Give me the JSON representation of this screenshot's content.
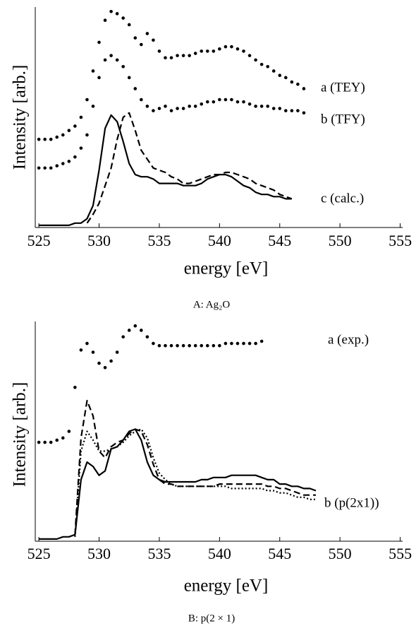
{
  "chart_data": [
    {
      "type": "line",
      "title": "A: Ag₂O",
      "xlabel": "energy [eV]",
      "ylabel": "Intensity [arb.]",
      "xlim": [
        524.7,
        555.2
      ],
      "xticks": [
        525,
        530,
        535,
        540,
        545,
        550,
        555
      ],
      "ylim": [
        0,
        100
      ],
      "color": "#000000",
      "annotations": [
        "a (TEY)",
        "b (TFY)",
        "c (calc.)"
      ],
      "x": [
        525,
        525.5,
        526,
        526.5,
        527,
        527.5,
        528,
        528.5,
        529,
        529.5,
        530,
        530.5,
        531,
        531.5,
        532,
        532.5,
        533,
        533.5,
        534,
        534.5,
        535,
        535.5,
        536,
        536.5,
        537,
        537.5,
        538,
        538.5,
        539,
        539.5,
        540,
        540.5,
        541,
        541.5,
        542,
        542.5,
        543,
        543.5,
        544,
        544.5,
        545,
        545.5,
        546,
        546.5,
        547
      ],
      "series": [
        {
          "style": "markers",
          "values": [
            40,
            40,
            40,
            41,
            42,
            44,
            46,
            50,
            58,
            71,
            84,
            94,
            98,
            97,
            95,
            92,
            86,
            83,
            88,
            85,
            80,
            77,
            77,
            78,
            78,
            78,
            79,
            80,
            80,
            80,
            81,
            82,
            82,
            81,
            80,
            78,
            76,
            74,
            73,
            71,
            69,
            68,
            66,
            65,
            63
          ]
        },
        {
          "style": "markers",
          "values": [
            27,
            27,
            27,
            28,
            29,
            30,
            32,
            36,
            42,
            55,
            68,
            76,
            78,
            76,
            73,
            68,
            63,
            58,
            55,
            53,
            54,
            55,
            53,
            54,
            54,
            55,
            55,
            56,
            57,
            57,
            58,
            58,
            58,
            57,
            57,
            56,
            55,
            55,
            55,
            54,
            54,
            53,
            53,
            53,
            52
          ]
        },
        {
          "style": "solid",
          "values": [
            1,
            1,
            1,
            1,
            1,
            1,
            2,
            2,
            4,
            10,
            26,
            45,
            51,
            48,
            39,
            29,
            24,
            23,
            23,
            22,
            20,
            20,
            20,
            20,
            19,
            19,
            19,
            20,
            22,
            23,
            24,
            24,
            23,
            21,
            19,
            18,
            16,
            15,
            15,
            14,
            14,
            13,
            13,
            null,
            null
          ]
        },
        {
          "style": "dashed",
          "values": [
            null,
            null,
            null,
            null,
            null,
            null,
            null,
            null,
            2,
            6,
            11,
            19,
            27,
            40,
            50,
            52,
            44,
            35,
            31,
            27,
            26,
            25,
            23,
            22,
            20,
            20,
            21,
            22,
            23,
            24,
            24,
            25,
            25,
            24,
            23,
            22,
            20,
            19,
            18,
            17,
            15,
            14,
            13,
            null,
            null
          ]
        }
      ]
    },
    {
      "type": "line",
      "title": "B: p(2 × 1)",
      "xlabel": "energy [eV]",
      "ylabel": "Intensity [arb.]",
      "xlim": [
        524.7,
        555.2
      ],
      "xticks": [
        525,
        530,
        535,
        540,
        545,
        550,
        555
      ],
      "ylim": [
        0,
        100
      ],
      "color": "#000000",
      "annotations": [
        "a (exp.)",
        "b (p(2x1))"
      ],
      "x": [
        525,
        525.5,
        526,
        526.5,
        527,
        527.5,
        528,
        528.5,
        529,
        529.5,
        530,
        530.5,
        531,
        531.5,
        532,
        532.5,
        533,
        533.5,
        534,
        534.5,
        535,
        535.5,
        536,
        536.5,
        537,
        537.5,
        538,
        538.5,
        539,
        539.5,
        540,
        540.5,
        541,
        541.5,
        542,
        542.5,
        543,
        543.5,
        544,
        544.5,
        545,
        545.5,
        546,
        546.5,
        547,
        547.5,
        548
      ],
      "series": [
        {
          "style": "markers",
          "values": [
            45,
            45,
            45,
            46,
            47,
            50,
            70,
            87,
            90,
            86,
            81,
            79,
            82,
            86,
            93,
            96,
            98,
            96,
            93,
            90,
            89,
            89,
            89,
            89,
            89,
            89,
            89,
            89,
            89,
            89,
            89,
            90,
            90,
            90,
            90,
            90,
            90,
            91,
            null,
            null,
            null,
            null,
            null,
            null,
            null,
            null,
            null
          ]
        },
        {
          "style": "solid",
          "values": [
            1,
            1,
            1,
            1,
            2,
            2,
            3,
            28,
            36,
            34,
            30,
            32,
            42,
            43,
            46,
            50,
            51,
            46,
            36,
            30,
            28,
            27,
            27,
            27,
            27,
            27,
            27,
            28,
            28,
            29,
            29,
            29,
            30,
            30,
            30,
            30,
            30,
            29,
            28,
            28,
            26,
            26,
            25,
            25,
            24,
            24,
            23
          ]
        },
        {
          "style": "dashed",
          "values": [
            null,
            null,
            null,
            null,
            null,
            null,
            3,
            47,
            64,
            57,
            41,
            38,
            43,
            45,
            46,
            49,
            51,
            50,
            44,
            35,
            28,
            26,
            26,
            25,
            25,
            25,
            25,
            25,
            25,
            25,
            26,
            26,
            26,
            26,
            26,
            26,
            26,
            26,
            25,
            25,
            24,
            24,
            23,
            22,
            21,
            21,
            21
          ]
        },
        {
          "style": "dotted",
          "values": [
            null,
            null,
            null,
            null,
            null,
            null,
            2,
            41,
            50,
            46,
            41,
            41,
            42,
            43,
            45,
            48,
            50,
            51,
            47,
            38,
            31,
            28,
            26,
            25,
            25,
            25,
            25,
            25,
            25,
            25,
            25,
            25,
            24,
            24,
            24,
            24,
            24,
            24,
            23,
            23,
            22,
            22,
            21,
            20,
            20,
            19,
            19
          ]
        }
      ]
    }
  ]
}
